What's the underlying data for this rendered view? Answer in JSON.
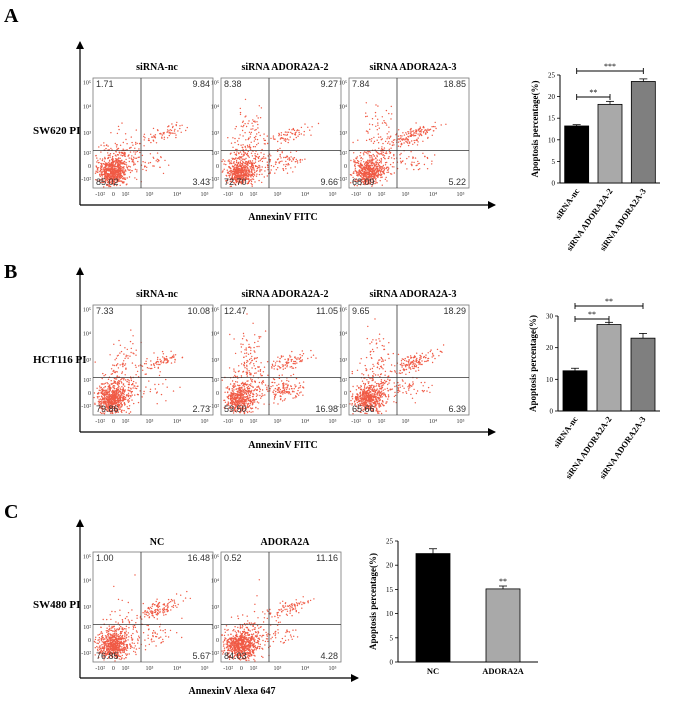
{
  "panels": [
    {
      "letter": "A",
      "row_label": "SW620 PI",
      "x_axis_label": "AnnexinV FITC",
      "plots": [
        {
          "title": "siRNA-nc",
          "quadrants": {
            "ul": "1.71",
            "ur": "9.84",
            "ll": "85.02",
            "lr": "3.43"
          }
        },
        {
          "title": "siRNA ADORA2A-2",
          "quadrants": {
            "ul": "8.38",
            "ur": "9.27",
            "ll": "72.70",
            "lr": "9.66"
          }
        },
        {
          "title": "siRNA ADORA2A-3",
          "quadrants": {
            "ul": "7.84",
            "ur": "18.85",
            "ll": "68.09",
            "lr": "5.22"
          }
        }
      ],
      "y_ticks": [
        "10⁵",
        "10⁴",
        "10³",
        "10²",
        "0",
        "-10²"
      ],
      "x_ticks": [
        "-10²",
        "0",
        "10²",
        "10³",
        "10⁴",
        "10⁵"
      ]
    },
    {
      "letter": "B",
      "row_label": "HCT116 PI",
      "x_axis_label": "AnnexinV FITC",
      "plots": [
        {
          "title": "siRNA-nc",
          "quadrants": {
            "ul": "7.33",
            "ur": "10.08",
            "ll": "79.86",
            "lr": "2.73"
          }
        },
        {
          "title": "siRNA ADORA2A-2",
          "quadrants": {
            "ul": "12.47",
            "ur": "11.05",
            "ll": "59.50",
            "lr": "16.98"
          }
        },
        {
          "title": "siRNA ADORA2A-3",
          "quadrants": {
            "ul": "9.65",
            "ur": "18.29",
            "ll": "65.66",
            "lr": "6.39"
          }
        }
      ],
      "y_ticks": [
        "10⁵",
        "10⁴",
        "10³",
        "10²",
        "0",
        "-10²"
      ],
      "x_ticks": [
        "-10²",
        "0",
        "10²",
        "10³",
        "10⁴",
        "10⁵"
      ]
    },
    {
      "letter": "C",
      "row_label": "SW480 PI",
      "x_axis_label": "AnnexinV Alexa 647",
      "plots": [
        {
          "title": "NC",
          "quadrants": {
            "ul": "1.00",
            "ur": "16.48",
            "ll": "76.85",
            "lr": "5.67"
          }
        },
        {
          "title": "ADORA2A",
          "quadrants": {
            "ul": "0.52",
            "ur": "11.16",
            "ll": "84.03",
            "lr": "4.28"
          }
        }
      ],
      "y_ticks": [
        "10⁵",
        "10⁴",
        "10³",
        "10²",
        "0",
        "-10²"
      ],
      "x_ticks": [
        "-10²",
        "0",
        "10²",
        "10³",
        "10⁴",
        "10⁵"
      ]
    }
  ],
  "colors": {
    "dots": "#f05a45",
    "bar_black": "#000000",
    "bar_light": "#a9a9a9",
    "bar_dark": "#7f7f7f"
  },
  "chart_data": [
    {
      "type": "bar",
      "title": "",
      "ylabel": "Apoptosis percentage(%)",
      "xlabel": "",
      "categories": [
        "siRNA-nc",
        "siRNA ADORA2A-2",
        "siRNA ADORA2A-3"
      ],
      "values": [
        13.2,
        18.2,
        23.5
      ],
      "errors": [
        0.3,
        0.7,
        0.6
      ],
      "ylim": [
        0,
        25
      ],
      "y_ticks": [
        "0",
        "5",
        "10",
        "15",
        "20",
        "25"
      ],
      "bar_colors": [
        "#000000",
        "#a9a9a9",
        "#7f7f7f"
      ],
      "significance": [
        {
          "from": 0,
          "to": 1,
          "label": "**"
        },
        {
          "from": 0,
          "to": 2,
          "label": "***"
        }
      ]
    },
    {
      "type": "bar",
      "title": "",
      "ylabel": "Apoptosis percentage(%)",
      "xlabel": "",
      "categories": [
        "siRNA-nc",
        "siRNA ADORA2A-2",
        "siRNA ADORA2A-3"
      ],
      "values": [
        12.7,
        27.3,
        23.0
      ],
      "errors": [
        0.8,
        0.7,
        1.5
      ],
      "ylim": [
        0,
        30
      ],
      "y_ticks": [
        "0",
        "10",
        "20",
        "30"
      ],
      "bar_colors": [
        "#000000",
        "#a9a9a9",
        "#7f7f7f"
      ],
      "significance": [
        {
          "from": 0,
          "to": 1,
          "label": "**"
        },
        {
          "from": 0,
          "to": 2,
          "label": "**"
        }
      ]
    },
    {
      "type": "bar",
      "title": "",
      "ylabel": "Apoptosis percentage(%)",
      "xlabel": "",
      "categories": [
        "NC",
        "ADORA2A"
      ],
      "values": [
        22.4,
        15.1
      ],
      "errors": [
        1.0,
        0.6
      ],
      "ylim": [
        0,
        25
      ],
      "y_ticks": [
        "0",
        "5",
        "10",
        "15",
        "20",
        "25"
      ],
      "bar_colors": [
        "#000000",
        "#a9a9a9"
      ],
      "significance": [
        {
          "bar": 1,
          "label": "**"
        }
      ]
    }
  ]
}
